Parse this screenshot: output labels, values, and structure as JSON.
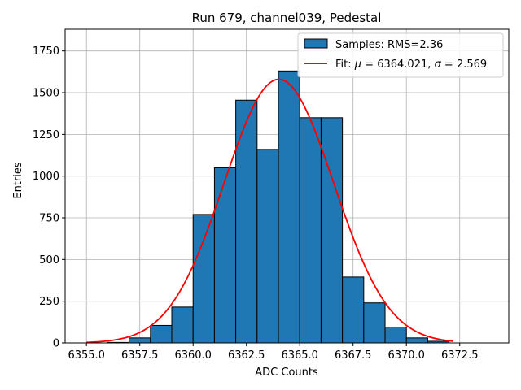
{
  "chart_data": {
    "type": "bar",
    "title": "Run 679, channel039, Pedestal",
    "xlabel": "ADC Counts",
    "ylabel": "Entries",
    "xlim": [
      6354.0,
      6374.8
    ],
    "ylim": [
      0,
      1880
    ],
    "xticks": [
      6355.0,
      6357.5,
      6360.0,
      6362.5,
      6365.0,
      6367.5,
      6370.0,
      6372.5
    ],
    "xtick_labels": [
      "6355.0",
      "6357.5",
      "6360.0",
      "6362.5",
      "6365.0",
      "6367.5",
      "6370.0",
      "6372.5"
    ],
    "yticks": [
      0,
      250,
      500,
      750,
      1000,
      1250,
      1500,
      1750
    ],
    "ytick_labels": [
      "0",
      "250",
      "500",
      "750",
      "1000",
      "1250",
      "1500",
      "1750"
    ],
    "grid": true,
    "legend_position": "top-right",
    "histogram": {
      "name": "Samples: RMS=2.36",
      "color": "#1f77b4",
      "edge_color": "#000000",
      "bin_edges": [
        6355,
        6356,
        6357,
        6358,
        6359,
        6360,
        6361,
        6362,
        6363,
        6364,
        6365,
        6366,
        6367,
        6368,
        6369,
        6370,
        6371,
        6372,
        6373,
        6374
      ],
      "counts": [
        0,
        3,
        30,
        105,
        215,
        770,
        1050,
        1455,
        1160,
        1630,
        1350,
        1350,
        395,
        240,
        95,
        30,
        10,
        0,
        0
      ]
    },
    "fit": {
      "name_prefix": "Fit: ",
      "mu_label": "μ",
      "mu_value": "6364.021",
      "sigma_label": "σ",
      "sigma_value": "2.569",
      "color": "#ff0000",
      "mu": 6364.021,
      "sigma": 2.569,
      "amplitude": 1580,
      "x_range": [
        6355.0,
        6372.2
      ]
    }
  }
}
